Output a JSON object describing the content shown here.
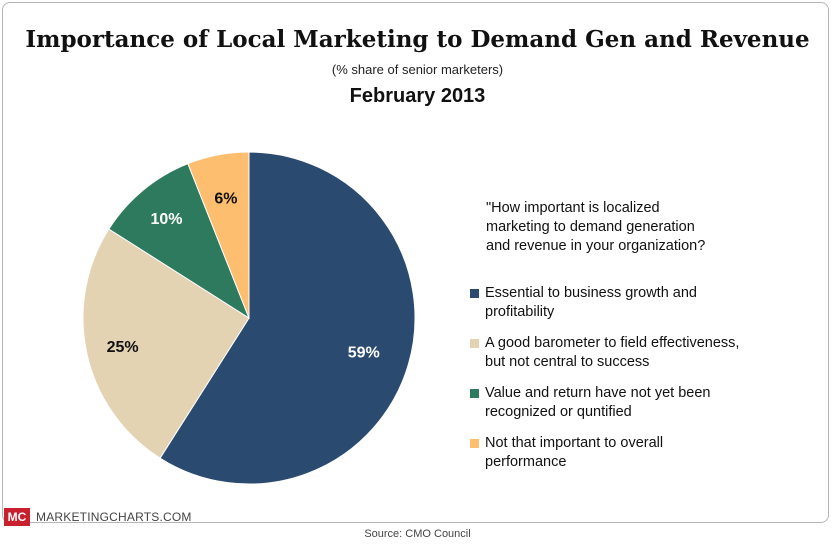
{
  "chart_data": {
    "type": "pie",
    "title": "Importance of Local Marketing to Demand Gen and Revenue",
    "subtitle": "(% share of senior marketers)",
    "date": "February 2013",
    "question": "\"How important is localized marketing to demand generation and revenue in your organization?",
    "legend_position": "right",
    "slices": [
      {
        "label": "Essential to business growth and profitability",
        "value": 59,
        "display": "59%",
        "color": "#2b4a6f",
        "label_color": "#ffffff"
      },
      {
        "label": "A good barometer to field effectiveness, but not central to success",
        "value": 25,
        "display": "25%",
        "color": "#e3d3b3",
        "label_color": "#111111"
      },
      {
        "label": "Value and return have not yet been recognized or quntified",
        "value": 10,
        "display": "10%",
        "color": "#2d7a5f",
        "label_color": "#ffffff"
      },
      {
        "label": "Not that important to overall performance",
        "value": 6,
        "display": "6%",
        "color": "#fdbf6f",
        "label_color": "#111111"
      }
    ]
  },
  "legend_lines": [
    "Essential to business growth and\nprofitability",
    "A good barometer to field effectiveness,\nbut not central to success",
    "Value and return have not yet been\nrecognized or quntified",
    "Not that important to overall\nperformance"
  ],
  "question_lines": "\"How important is localized\nmarketing to demand generation\nand revenue in your organization?",
  "branding": {
    "logo_text": "MC",
    "site": "MARKETINGCHARTS.COM"
  },
  "source": "Source: CMO Council"
}
